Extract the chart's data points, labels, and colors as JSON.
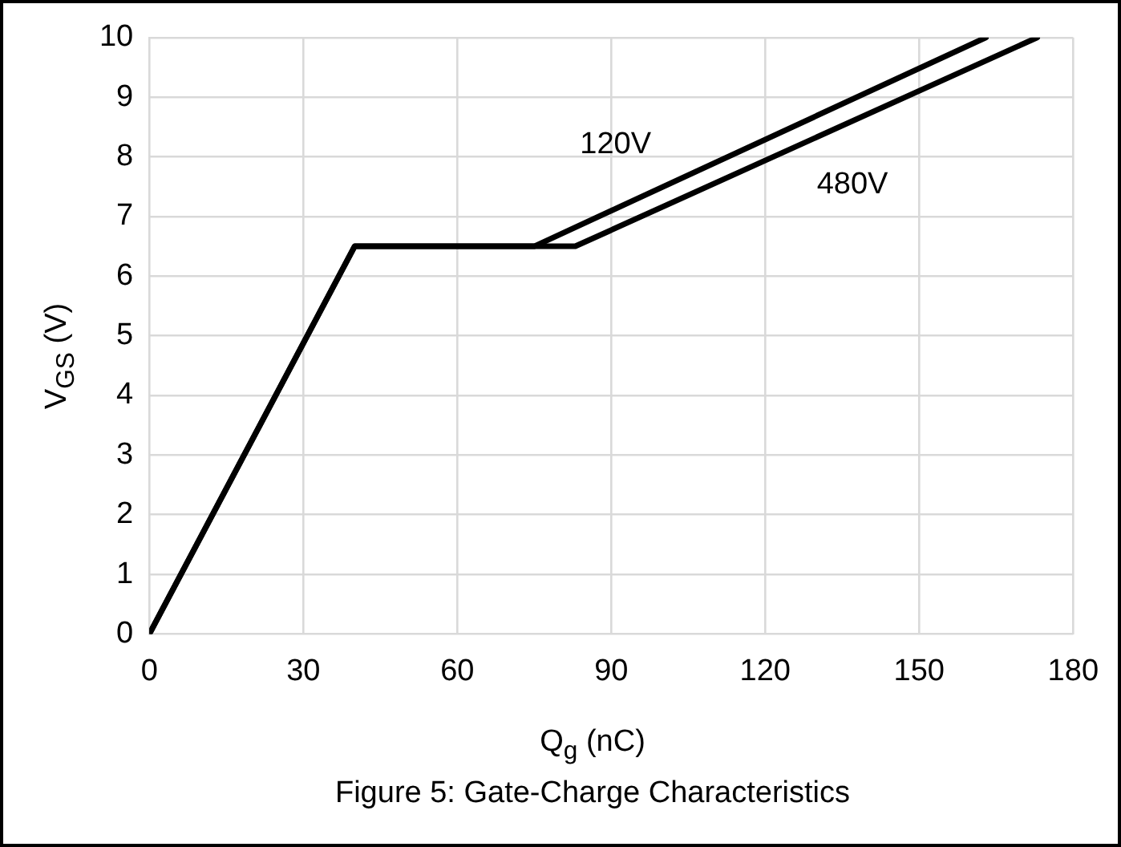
{
  "chart_data": {
    "type": "line",
    "xlabel": "Q$_{g}$ (nC)",
    "ylabel": "V$_{GS}$ (V)",
    "annotations": [
      "Figure 5: Gate-Charge Characteristics"
    ],
    "xlim": [
      0,
      180
    ],
    "xticks": [
      0,
      30,
      60,
      90,
      120,
      150,
      180
    ],
    "ylim": [
      0,
      10
    ],
    "yticks": [
      0,
      1,
      2,
      3,
      4,
      5,
      6,
      7,
      8,
      9,
      10
    ],
    "grid": true,
    "legend": false,
    "marker": "none",
    "line_style": "solid",
    "series": [
      {
        "name": "120V",
        "color": "#000000",
        "x": [
          0,
          40,
          75,
          163
        ],
        "values": [
          0,
          6.5,
          6.5,
          10
        ]
      },
      {
        "name": "480V",
        "color": "#000000",
        "x": [
          0,
          40,
          83,
          173
        ],
        "values": [
          0,
          6.5,
          6.5,
          10
        ]
      }
    ]
  }
}
